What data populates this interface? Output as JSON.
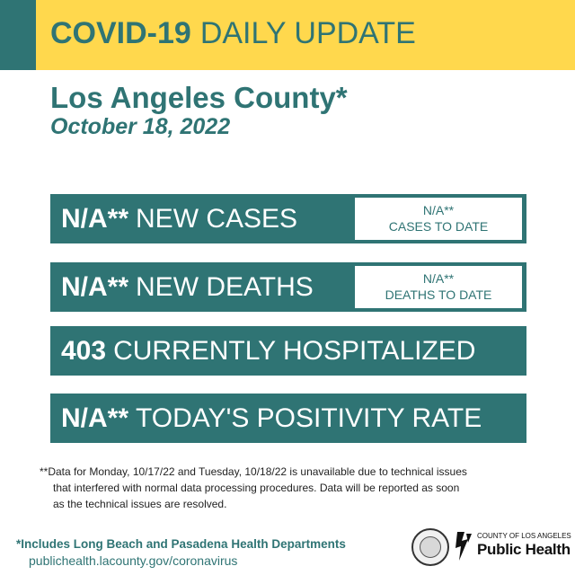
{
  "header": {
    "title_bold": "COVID-19",
    "title_light": "DAILY UPDATE"
  },
  "county": "Los Angeles County*",
  "date": "October 18, 2022",
  "stats": [
    {
      "value": "N/A**",
      "label": "NEW CASES",
      "side_value": "N/A**",
      "side_label": "CASES TO DATE"
    },
    {
      "value": "N/A**",
      "label": "NEW DEATHS",
      "side_value": "N/A**",
      "side_label": "DEATHS TO DATE"
    },
    {
      "value": "403",
      "label": "CURRENTLY HOSPITALIZED"
    },
    {
      "value": "N/A**",
      "label": "TODAY'S POSITIVITY RATE"
    }
  ],
  "footnote": {
    "line1": "**Data for Monday, 10/17/22 and Tuesday, 10/18/22 is unavailable due to technical issues",
    "line2": "that interfered with normal data processing procedures. Data will be reported as soon",
    "line3": "as the technical issues are resolved."
  },
  "footer": {
    "includes": "*Includes Long Beach and Pasadena Health Departments",
    "website": "publichealth.lacounty.gov/coronavirus"
  },
  "logo": {
    "small": "COUNTY OF LOS ANGELES",
    "big": "Public Health"
  },
  "colors": {
    "teal": "#2f7474",
    "yellow": "#ffd84d"
  }
}
